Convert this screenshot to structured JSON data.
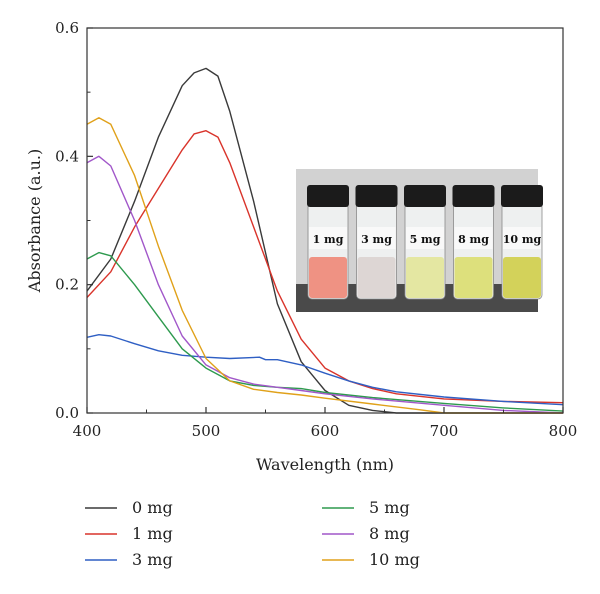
{
  "chart_data": {
    "type": "line",
    "title": "",
    "xlabel": "Wavelength (nm)",
    "ylabel": "Absorbance (a.u.)",
    "xlim": [
      400,
      800
    ],
    "ylim": [
      0,
      0.6
    ],
    "x_ticks": [
      "400",
      "500",
      "600",
      "700",
      "800"
    ],
    "y_ticks": [
      "0.0",
      "0.2",
      "0.4",
      "0.6"
    ],
    "grid": false,
    "legend_position": "bottom",
    "series": [
      {
        "name": "0 mg",
        "color": "#3a3a3a",
        "points": [
          [
            400,
            0.19
          ],
          [
            420,
            0.24
          ],
          [
            440,
            0.33
          ],
          [
            460,
            0.43
          ],
          [
            480,
            0.51
          ],
          [
            490,
            0.53
          ],
          [
            500,
            0.537
          ],
          [
            510,
            0.525
          ],
          [
            520,
            0.47
          ],
          [
            540,
            0.33
          ],
          [
            560,
            0.17
          ],
          [
            580,
            0.08
          ],
          [
            600,
            0.035
          ],
          [
            620,
            0.012
          ],
          [
            640,
            0.004
          ],
          [
            660,
            0
          ],
          [
            700,
            0
          ],
          [
            800,
            0
          ]
        ]
      },
      {
        "name": "1 mg",
        "color": "#d9342b",
        "points": [
          [
            400,
            0.18
          ],
          [
            420,
            0.22
          ],
          [
            440,
            0.29
          ],
          [
            460,
            0.35
          ],
          [
            480,
            0.41
          ],
          [
            490,
            0.435
          ],
          [
            500,
            0.44
          ],
          [
            510,
            0.43
          ],
          [
            520,
            0.39
          ],
          [
            540,
            0.29
          ],
          [
            560,
            0.19
          ],
          [
            580,
            0.115
          ],
          [
            600,
            0.07
          ],
          [
            620,
            0.05
          ],
          [
            640,
            0.038
          ],
          [
            660,
            0.03
          ],
          [
            700,
            0.022
          ],
          [
            750,
            0.018
          ],
          [
            800,
            0.016
          ]
        ]
      },
      {
        "name": "3 mg",
        "color": "#2f5fc4",
        "points": [
          [
            400,
            0.118
          ],
          [
            410,
            0.122
          ],
          [
            420,
            0.12
          ],
          [
            440,
            0.108
          ],
          [
            460,
            0.097
          ],
          [
            480,
            0.09
          ],
          [
            500,
            0.087
          ],
          [
            520,
            0.085
          ],
          [
            545,
            0.087
          ],
          [
            550,
            0.083
          ],
          [
            560,
            0.083
          ],
          [
            580,
            0.075
          ],
          [
            600,
            0.062
          ],
          [
            620,
            0.05
          ],
          [
            640,
            0.04
          ],
          [
            660,
            0.033
          ],
          [
            700,
            0.025
          ],
          [
            750,
            0.018
          ],
          [
            800,
            0.013
          ]
        ]
      },
      {
        "name": "5 mg",
        "color": "#2e9a4e",
        "points": [
          [
            400,
            0.24
          ],
          [
            410,
            0.25
          ],
          [
            420,
            0.245
          ],
          [
            440,
            0.2
          ],
          [
            460,
            0.15
          ],
          [
            480,
            0.1
          ],
          [
            500,
            0.07
          ],
          [
            520,
            0.05
          ],
          [
            540,
            0.043
          ],
          [
            560,
            0.04
          ],
          [
            580,
            0.038
          ],
          [
            600,
            0.032
          ],
          [
            640,
            0.024
          ],
          [
            700,
            0.015
          ],
          [
            750,
            0.008
          ],
          [
            800,
            0.003
          ]
        ]
      },
      {
        "name": "8 mg",
        "color": "#a157c9",
        "points": [
          [
            400,
            0.39
          ],
          [
            410,
            0.4
          ],
          [
            420,
            0.385
          ],
          [
            440,
            0.3
          ],
          [
            460,
            0.2
          ],
          [
            480,
            0.12
          ],
          [
            500,
            0.075
          ],
          [
            520,
            0.055
          ],
          [
            540,
            0.045
          ],
          [
            560,
            0.04
          ],
          [
            580,
            0.035
          ],
          [
            600,
            0.03
          ],
          [
            640,
            0.022
          ],
          [
            700,
            0.012
          ],
          [
            750,
            0.004
          ],
          [
            800,
            0
          ]
        ]
      },
      {
        "name": "10 mg",
        "color": "#e0a11a",
        "points": [
          [
            400,
            0.45
          ],
          [
            410,
            0.46
          ],
          [
            420,
            0.45
          ],
          [
            440,
            0.37
          ],
          [
            460,
            0.26
          ],
          [
            480,
            0.16
          ],
          [
            500,
            0.085
          ],
          [
            520,
            0.05
          ],
          [
            540,
            0.037
          ],
          [
            560,
            0.032
          ],
          [
            580,
            0.028
          ],
          [
            600,
            0.023
          ],
          [
            640,
            0.014
          ],
          [
            680,
            0.005
          ],
          [
            700,
            0
          ],
          [
            800,
            0
          ]
        ]
      }
    ],
    "inset": {
      "vials": [
        {
          "label": "1 mg",
          "liquid_color": "#ef9283"
        },
        {
          "label": "3 mg",
          "liquid_color": "#ddd6d4"
        },
        {
          "label": "5 mg",
          "liquid_color": "#e4e7a2"
        },
        {
          "label": "8 mg",
          "liquid_color": "#dde07c"
        },
        {
          "label": "10 mg",
          "liquid_color": "#d3d25a"
        }
      ]
    }
  }
}
